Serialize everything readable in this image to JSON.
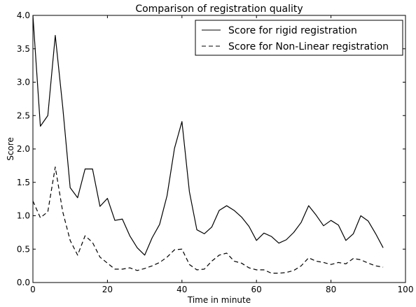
{
  "chart_data": {
    "type": "line",
    "title": "Comparison of registration quality",
    "xlabel": "Time in minute",
    "ylabel": "Score",
    "xlim": [
      0,
      100
    ],
    "ylim": [
      0,
      4.0
    ],
    "xticks": [
      "0",
      "20",
      "40",
      "60",
      "80",
      "100"
    ],
    "yticks": [
      "0.0",
      "0.5",
      "1.0",
      "1.5",
      "2.0",
      "2.5",
      "3.0",
      "3.5",
      "4.0"
    ],
    "grid": false,
    "legend_position": "top-right",
    "x": [
      0,
      2,
      4,
      6,
      8,
      10,
      12,
      14,
      16,
      18,
      20,
      22,
      24,
      26,
      28,
      30,
      32,
      34,
      36,
      38,
      40,
      42,
      44,
      46,
      48,
      50,
      52,
      54,
      56,
      58,
      60,
      62,
      64,
      66,
      68,
      70,
      72,
      74,
      76,
      78,
      80,
      82,
      84,
      86,
      88,
      90,
      92,
      94
    ],
    "series": [
      {
        "name": "Score for rigid registration",
        "style": "solid",
        "color": "#000000",
        "values": [
          4.0,
          2.34,
          2.5,
          3.7,
          2.63,
          1.42,
          1.27,
          1.7,
          1.7,
          1.14,
          1.26,
          0.93,
          0.95,
          0.7,
          0.52,
          0.41,
          0.67,
          0.87,
          1.3,
          2.01,
          2.41,
          1.36,
          0.79,
          0.73,
          0.83,
          1.08,
          1.15,
          1.08,
          0.98,
          0.84,
          0.63,
          0.74,
          0.69,
          0.59,
          0.64,
          0.75,
          0.9,
          1.15,
          1.01,
          0.85,
          0.93,
          0.86,
          0.63,
          0.73,
          1.0,
          0.92,
          0.73,
          0.52
        ]
      },
      {
        "name": "Score for Non-Linear registration",
        "style": "dashed",
        "color": "#000000",
        "values": [
          1.22,
          0.97,
          1.06,
          1.73,
          1.06,
          0.63,
          0.41,
          0.7,
          0.6,
          0.38,
          0.29,
          0.2,
          0.2,
          0.22,
          0.18,
          0.21,
          0.25,
          0.3,
          0.38,
          0.49,
          0.5,
          0.27,
          0.19,
          0.2,
          0.32,
          0.41,
          0.44,
          0.32,
          0.29,
          0.22,
          0.19,
          0.19,
          0.14,
          0.14,
          0.15,
          0.18,
          0.25,
          0.37,
          0.32,
          0.3,
          0.27,
          0.3,
          0.28,
          0.36,
          0.34,
          0.29,
          0.25,
          0.23
        ]
      }
    ]
  }
}
